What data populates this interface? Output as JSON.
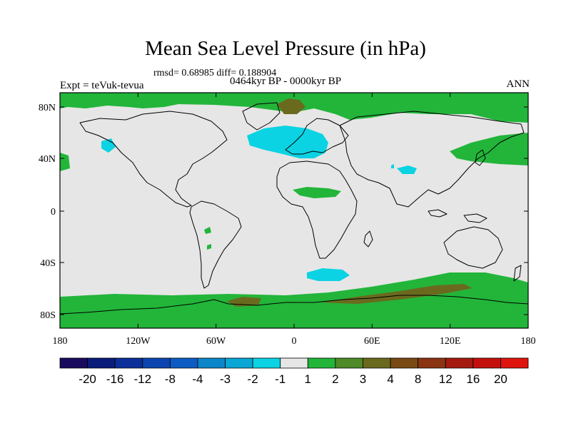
{
  "title": "Mean Sea Level Pressure (in hPa)",
  "stats": "rmsd= 0.68985 diff= 0.188904",
  "expt": "Expt = teVuk-tevua",
  "period": "0464kyr BP - 0000kyr BP",
  "season": "ANN",
  "x_axis": {
    "ticks": [
      "180",
      "120W",
      "60W",
      "0",
      "60E",
      "120E",
      "180"
    ]
  },
  "y_axis": {
    "ticks": [
      "80N",
      "40N",
      "0",
      "40S",
      "80S"
    ]
  },
  "colorbar": {
    "labels": [
      "-20",
      "-16",
      "-12",
      "-8",
      "-4",
      "-3",
      "-2",
      "-1",
      "1",
      "2",
      "3",
      "4",
      "8",
      "12",
      "16",
      "20"
    ],
    "colors": [
      "#1a0a5e",
      "#0a1c7a",
      "#0b2e99",
      "#0c45b0",
      "#0d5cc4",
      "#0b86c9",
      "#0aa6d6",
      "#0bd3e3",
      "#e6e6e6",
      "#22b53a",
      "#4e8a28",
      "#6a6a1f",
      "#7a4a14",
      "#8a3412",
      "#a51a0e",
      "#c4100c",
      "#e0140f"
    ]
  },
  "map": {
    "background_color": "#e6e6e6",
    "positive_color": "#22b53a",
    "strong_positive_color": "#6a6a1f",
    "negative_color": "#0bd3e3",
    "coastline_color": "#000000"
  }
}
